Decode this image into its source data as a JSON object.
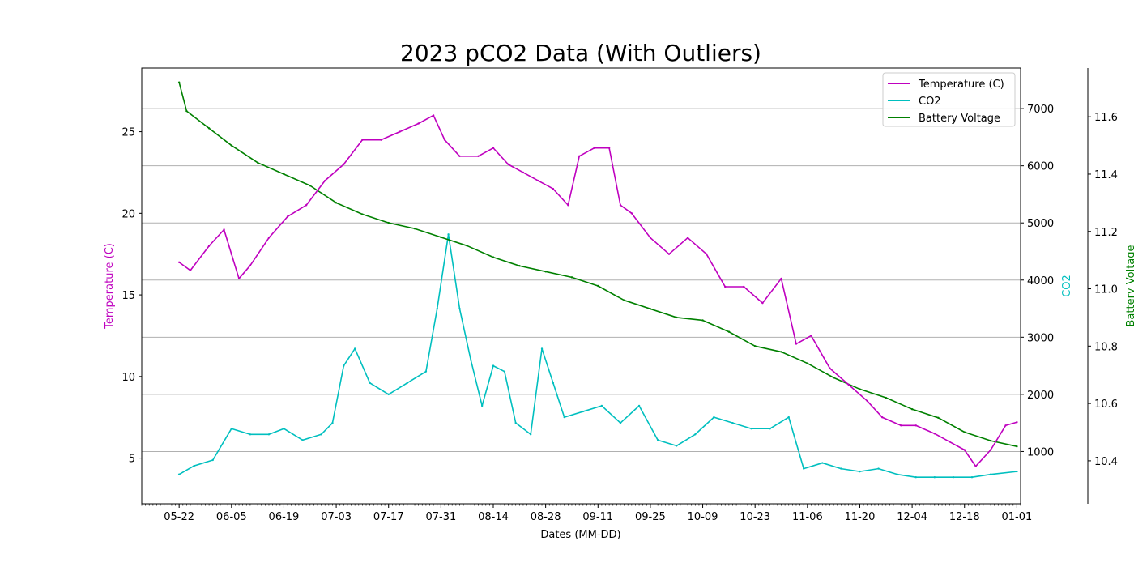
{
  "chart_data": {
    "type": "line",
    "title": "2023 pCO2 Data (With Outliers)",
    "xlabel": "Dates (MM-DD)",
    "x_ticks": [
      "05-22",
      "06-05",
      "06-19",
      "07-03",
      "07-17",
      "07-31",
      "08-14",
      "08-28",
      "09-11",
      "09-25",
      "10-09",
      "10-23",
      "11-06",
      "11-20",
      "12-04",
      "12-18",
      "01-01"
    ],
    "x_range": [
      "2023-05-12",
      "2024-01-02"
    ],
    "grid": "horizontal (y gridlines, CO2 axis)",
    "legend_position": "top-right",
    "axes": [
      {
        "key": "temp",
        "label": "Temperature (C)",
        "color": "#bf00bf",
        "side": "left",
        "ylim": [
          2.2,
          28.9
        ],
        "ticks": [
          5,
          10,
          15,
          20,
          25
        ]
      },
      {
        "key": "co2",
        "label": "CO2",
        "color": "#00bfbf",
        "side": "right",
        "ylim": [
          85,
          7710
        ],
        "ticks": [
          1000,
          2000,
          3000,
          4000,
          5000,
          6000,
          7000
        ]
      },
      {
        "key": "batt",
        "label": "Battery Voltage",
        "color": "#008000",
        "side": "right-outer",
        "ylim": [
          10.25,
          11.77
        ],
        "ticks": [
          10.4,
          10.6,
          10.8,
          11.0,
          11.2,
          11.4,
          11.6
        ]
      }
    ],
    "series": [
      {
        "name": "Temperature (C)",
        "axis": "temp",
        "color": "#bf00bf",
        "x": [
          "2023-05-22",
          "2023-05-25",
          "2023-05-30",
          "2023-06-03",
          "2023-06-05",
          "2023-06-07",
          "2023-06-10",
          "2023-06-15",
          "2023-06-20",
          "2023-06-25",
          "2023-06-30",
          "2023-07-05",
          "2023-07-10",
          "2023-07-15",
          "2023-07-20",
          "2023-07-25",
          "2023-07-29",
          "2023-08-01",
          "2023-08-05",
          "2023-08-10",
          "2023-08-14",
          "2023-08-18",
          "2023-08-22",
          "2023-08-26",
          "2023-08-30",
          "2023-09-03",
          "2023-09-06",
          "2023-09-10",
          "2023-09-14",
          "2023-09-17",
          "2023-09-20",
          "2023-09-25",
          "2023-09-30",
          "2023-10-05",
          "2023-10-10",
          "2023-10-15",
          "2023-10-20",
          "2023-10-25",
          "2023-10-30",
          "2023-11-03",
          "2023-11-07",
          "2023-11-12",
          "2023-11-17",
          "2023-11-22",
          "2023-11-26",
          "2023-12-01",
          "2023-12-05",
          "2023-12-10",
          "2023-12-14",
          "2023-12-18",
          "2023-12-21",
          "2023-12-25",
          "2023-12-29",
          "2024-01-01"
        ],
        "y": [
          17.0,
          16.5,
          18.0,
          19.0,
          17.5,
          16.0,
          16.8,
          18.5,
          19.8,
          20.5,
          22.0,
          23.0,
          24.5,
          24.5,
          25.0,
          25.5,
          26.0,
          24.5,
          23.5,
          23.5,
          24.0,
          23.0,
          22.5,
          22.0,
          21.5,
          20.5,
          23.5,
          24.0,
          24.0,
          20.5,
          20.0,
          18.5,
          17.5,
          18.5,
          17.5,
          15.5,
          15.5,
          14.5,
          16.0,
          12.0,
          12.5,
          10.5,
          9.5,
          8.5,
          7.5,
          7.0,
          7.0,
          6.5,
          6.0,
          5.5,
          4.5,
          5.5,
          7.0,
          7.2
        ]
      },
      {
        "name": "CO2",
        "axis": "co2",
        "color": "#00bfbf",
        "x": [
          "2023-05-22",
          "2023-05-26",
          "2023-05-31",
          "2023-06-05",
          "2023-06-10",
          "2023-06-15",
          "2023-06-19",
          "2023-06-24",
          "2023-06-29",
          "2023-07-02",
          "2023-07-05",
          "2023-07-08",
          "2023-07-12",
          "2023-07-17",
          "2023-07-22",
          "2023-07-27",
          "2023-07-30",
          "2023-08-02",
          "2023-08-05",
          "2023-08-08",
          "2023-08-11",
          "2023-08-14",
          "2023-08-17",
          "2023-08-20",
          "2023-08-24",
          "2023-08-27",
          "2023-08-30",
          "2023-09-02",
          "2023-09-07",
          "2023-09-12",
          "2023-09-17",
          "2023-09-22",
          "2023-09-27",
          "2023-10-02",
          "2023-10-07",
          "2023-10-12",
          "2023-10-17",
          "2023-10-22",
          "2023-10-27",
          "2023-11-01",
          "2023-11-05",
          "2023-11-10",
          "2023-11-15",
          "2023-11-20",
          "2023-11-25",
          "2023-11-30",
          "2023-12-05",
          "2023-12-10",
          "2023-12-15",
          "2023-12-20",
          "2023-12-25",
          "2024-01-01"
        ],
        "y": [
          600,
          750,
          850,
          1400,
          1300,
          1300,
          1400,
          1200,
          1300,
          1500,
          2500,
          2800,
          2200,
          2000,
          2200,
          2400,
          3500,
          4800,
          3500,
          2600,
          1800,
          2500,
          2400,
          1500,
          1300,
          2800,
          2200,
          1600,
          1700,
          1800,
          1500,
          1800,
          1200,
          1100,
          1300,
          1600,
          1500,
          1400,
          1400,
          1600,
          700,
          800,
          700,
          650,
          700,
          600,
          550,
          550,
          550,
          550,
          600,
          650
        ]
      },
      {
        "name": "Battery Voltage",
        "axis": "batt",
        "color": "#008000",
        "x": [
          "2023-05-22",
          "2023-05-24",
          "2023-05-30",
          "2023-06-05",
          "2023-06-12",
          "2023-06-19",
          "2023-06-26",
          "2023-07-03",
          "2023-07-10",
          "2023-07-17",
          "2023-07-24",
          "2023-07-31",
          "2023-08-07",
          "2023-08-14",
          "2023-08-21",
          "2023-08-28",
          "2023-09-04",
          "2023-09-11",
          "2023-09-18",
          "2023-09-25",
          "2023-10-02",
          "2023-10-09",
          "2023-10-16",
          "2023-10-23",
          "2023-10-30",
          "2023-11-06",
          "2023-11-13",
          "2023-11-20",
          "2023-11-27",
          "2023-12-04",
          "2023-12-11",
          "2023-12-18",
          "2023-12-25",
          "2024-01-01"
        ],
        "y": [
          11.72,
          11.62,
          11.56,
          11.5,
          11.44,
          11.4,
          11.36,
          11.3,
          11.26,
          11.23,
          11.21,
          11.18,
          11.15,
          11.11,
          11.08,
          11.06,
          11.04,
          11.01,
          10.96,
          10.93,
          10.9,
          10.89,
          10.85,
          10.8,
          10.78,
          10.74,
          10.69,
          10.65,
          10.62,
          10.58,
          10.55,
          10.5,
          10.47,
          10.45
        ]
      }
    ]
  }
}
